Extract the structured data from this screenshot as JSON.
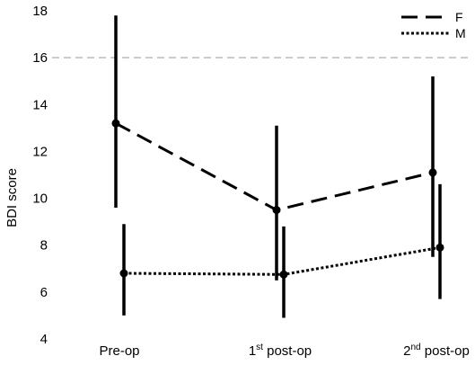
{
  "chart_data": {
    "type": "line",
    "title": "",
    "xlabel": "",
    "ylabel": "BDI score",
    "ylim": [
      4,
      18
    ],
    "yticks": [
      4,
      6,
      8,
      10,
      12,
      14,
      16,
      18
    ],
    "categories": [
      {
        "base": "Pre-op",
        "sup": "",
        "rest": ""
      },
      {
        "base": "1",
        "sup": "st",
        "rest": " post-op"
      },
      {
        "base": "2",
        "sup": "nd",
        "rest": " post-op"
      }
    ],
    "reference_line": {
      "y": 16,
      "color": "#bbbbbb",
      "style": "dashed"
    },
    "legend": {
      "position": "top-right"
    },
    "series": [
      {
        "name": "F",
        "line_style": "long-dash",
        "values": [
          13.2,
          9.5,
          11.1
        ],
        "error_low": [
          9.6,
          6.5,
          7.5
        ],
        "error_high": [
          17.8,
          13.1,
          15.2
        ]
      },
      {
        "name": "M",
        "line_style": "dotted",
        "values": [
          6.8,
          6.75,
          7.9
        ],
        "error_low": [
          5.0,
          4.9,
          5.7
        ],
        "error_high": [
          8.9,
          8.8,
          10.6
        ]
      }
    ]
  }
}
